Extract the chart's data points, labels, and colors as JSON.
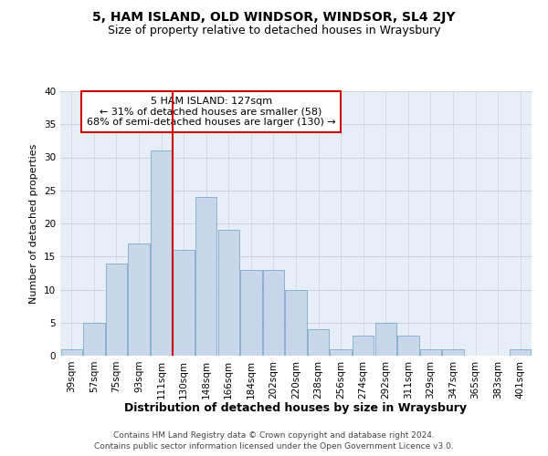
{
  "title": "5, HAM ISLAND, OLD WINDSOR, WINDSOR, SL4 2JY",
  "subtitle": "Size of property relative to detached houses in Wraysbury",
  "xlabel": "Distribution of detached houses by size in Wraysbury",
  "ylabel": "Number of detached properties",
  "categories": [
    "39sqm",
    "57sqm",
    "75sqm",
    "93sqm",
    "111sqm",
    "130sqm",
    "148sqm",
    "166sqm",
    "184sqm",
    "202sqm",
    "220sqm",
    "238sqm",
    "256sqm",
    "274sqm",
    "292sqm",
    "311sqm",
    "329sqm",
    "347sqm",
    "365sqm",
    "383sqm",
    "401sqm"
  ],
  "bar_values": [
    1,
    5,
    14,
    17,
    31,
    16,
    24,
    19,
    13,
    13,
    10,
    4,
    1,
    3,
    5,
    3,
    1,
    1,
    0,
    0,
    1
  ],
  "bar_color": "#c8d8ea",
  "bar_edge_color": "#7aaac8",
  "vline_x": 4.5,
  "vline_color": "#cc0000",
  "annotation_line1": "5 HAM ISLAND: 127sqm",
  "annotation_line2": "← 31% of detached houses are smaller (58)",
  "annotation_line3": "68% of semi-detached houses are larger (130) →",
  "annotation_box_color": "#ffffff",
  "annotation_box_edge": "#cc0000",
  "ylim": [
    0,
    40
  ],
  "yticks": [
    0,
    5,
    10,
    15,
    20,
    25,
    30,
    35,
    40
  ],
  "grid_color": "#c8d4e0",
  "background_color": "#e8eef6",
  "footer_line1": "Contains HM Land Registry data © Crown copyright and database right 2024.",
  "footer_line2": "Contains public sector information licensed under the Open Government Licence v3.0.",
  "title_fontsize": 10,
  "subtitle_fontsize": 9,
  "xlabel_fontsize": 9,
  "ylabel_fontsize": 8,
  "tick_fontsize": 7.5,
  "annotation_fontsize": 8,
  "footer_fontsize": 6.5
}
